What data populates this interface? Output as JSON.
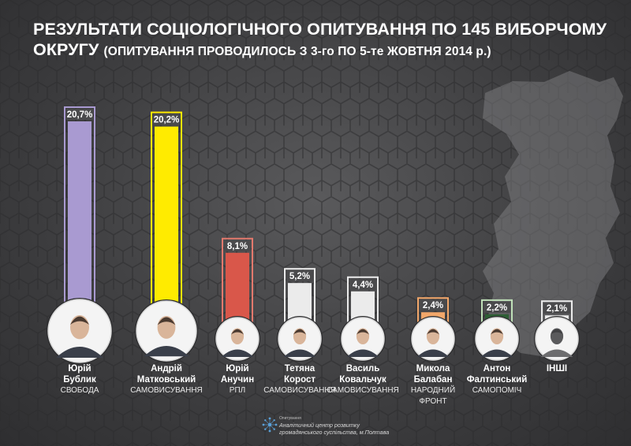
{
  "title": {
    "line1": "РЕЗУЛЬТАТИ СОЦІОЛОГІЧНОГО ОПИТУВАННЯ ПО 145 ВИБОРЧОМУ",
    "line2": "ОКРУГУ",
    "subtitle": "(ОПИТУВАННЯ ПРОВОДИЛОСЬ З 3-го ПО 5-те ЖОВТНЯ 2014 р.)"
  },
  "chart_data": {
    "type": "bar",
    "categories": [
      "Юрій Бублик",
      "Андрій Матковський",
      "Юрій Анучин",
      "Тетяна Корост",
      "Василь Ковальчук",
      "Микола Балабан",
      "Антон Фалтинський",
      "ІНШІ"
    ],
    "values": [
      20.7,
      20.2,
      8.1,
      5.2,
      4.4,
      2.4,
      2.2,
      2.1
    ],
    "value_labels": [
      "20,7%",
      "20,2%",
      "8,1%",
      "5,2%",
      "4,4%",
      "2,4%",
      "2,2%",
      "2,1%"
    ],
    "colors": [
      "#a99ad1",
      "#ffeb00",
      "#d9574a",
      "#ebebeb",
      "#ebebeb",
      "#f2a76a",
      "#2d5e34",
      "#ebebeb"
    ],
    "label_colors": [
      "#ffffff",
      "#ffffff",
      "#ffffff",
      "#ffffff",
      "#ffffff",
      "#ffffff",
      "#ffffff",
      "#ffffff"
    ],
    "frame_colors": [
      "#a99ad1",
      "#ffeb00",
      "#e3796d",
      "#ebebeb",
      "#ebebeb",
      "#f2a76a",
      "#bfe0b8",
      "#ebebeb"
    ],
    "ylim": [
      0,
      20.7
    ],
    "grid": false,
    "legend": "none"
  },
  "candidates": [
    {
      "first": "Юрій",
      "last": "Бублик",
      "party": [
        "СВОБОДА"
      ],
      "icon": "candidate-photo-icon"
    },
    {
      "first": "Андрій",
      "last": "Матковський",
      "party": [
        "САМОВИСУВАННЯ"
      ],
      "icon": "candidate-photo-icon"
    },
    {
      "first": "Юрій",
      "last": "Анучин",
      "party": [
        "РПЛ"
      ],
      "icon": "candidate-photo-icon"
    },
    {
      "first": "Тетяна",
      "last": "Корост",
      "party": [
        "САМОВИСУВАННЯ"
      ],
      "icon": "candidate-photo-icon"
    },
    {
      "first": "Василь",
      "last": "Ковальчук",
      "party": [
        "САМОВИСУВАННЯ"
      ],
      "icon": "candidate-photo-icon"
    },
    {
      "first": "Микола",
      "last": "Балабан",
      "party": [
        "НАРОДНИЙ",
        "ФРОНТ"
      ],
      "icon": "candidate-photo-icon"
    },
    {
      "first": "Антон",
      "last": "Фалтинський",
      "party": [
        "САМОПОМІЧ"
      ],
      "icon": "candidate-photo-icon"
    },
    {
      "first": "ІНШІ",
      "last": "",
      "party": [],
      "icon": "person-silhouette-icon"
    }
  ],
  "footer": {
    "small": "Опитування",
    "org_line1": "Аналітичний центр розвитку",
    "org_line2": "громадянського суспільства, м.Полтава",
    "icon": "network-logo-icon"
  }
}
